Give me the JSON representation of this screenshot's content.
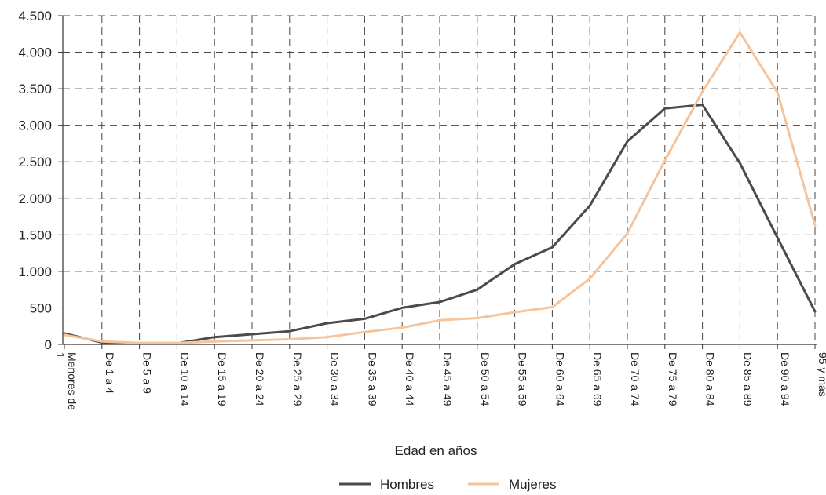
{
  "chart_data": {
    "type": "line",
    "title": "",
    "xlabel": "Edad en años",
    "ylabel": "",
    "ylim": [
      0,
      4500
    ],
    "y_ticks": [
      0,
      500,
      1000,
      1500,
      2000,
      2500,
      3000,
      3500,
      4000,
      4500
    ],
    "y_tick_labels": [
      "0",
      "500",
      "1.000",
      "1.500",
      "2.000",
      "2.500",
      "3.000",
      "3.500",
      "4.000",
      "4.500"
    ],
    "grid": true,
    "legend_position": "bottom-center",
    "categories": [
      "Menores de 1",
      "De 1 a 4",
      "De 5 a 9",
      "De 10 a 14",
      "De 15 a 19",
      "De 20 a 24",
      "De 25 a 29",
      "De 30 a 34",
      "De 35 a 39",
      "De 40 a 44",
      "De 45 a 49",
      "De 50 a 54",
      "De 55 a 59",
      "De 60 a 64",
      "De 65 a 69",
      "De 70 a 74",
      "De 75 a 79",
      "De 80 a 84",
      "De 85 a 89",
      "De 90 a 94",
      "95 y más"
    ],
    "series": [
      {
        "name": "Hombres",
        "color": "#4a4a4f",
        "values": [
          150,
          25,
          15,
          15,
          100,
          140,
          180,
          290,
          350,
          500,
          580,
          750,
          1100,
          1330,
          1900,
          2780,
          3230,
          3280,
          2480,
          1460,
          450
        ]
      },
      {
        "name": "Mujeres",
        "color": "#f6c49a",
        "values": [
          130,
          40,
          20,
          20,
          40,
          55,
          70,
          100,
          170,
          230,
          330,
          360,
          440,
          510,
          900,
          1520,
          2520,
          3460,
          4270,
          3450,
          1630
        ]
      }
    ]
  }
}
